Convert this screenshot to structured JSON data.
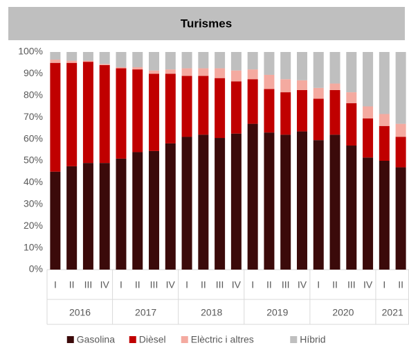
{
  "chart_data": {
    "type": "stacked_bar",
    "title": "Turismes",
    "groups": [
      {
        "label": "2016",
        "categories": [
          "I",
          "II",
          "III",
          "IV"
        ]
      },
      {
        "label": "2017",
        "categories": [
          "I",
          "II",
          "III",
          "IV"
        ]
      },
      {
        "label": "2018",
        "categories": [
          "I",
          "II",
          "III",
          "IV"
        ]
      },
      {
        "label": "2019",
        "categories": [
          "I",
          "II",
          "III",
          "IV"
        ]
      },
      {
        "label": "2020",
        "categories": [
          "I",
          "II",
          "III",
          "IV"
        ]
      },
      {
        "label": "2021",
        "categories": [
          "I",
          "II"
        ]
      }
    ],
    "series": [
      {
        "name": "Gasolina",
        "color": "#3b0a0a",
        "values": [
          45,
          47.5,
          49,
          49,
          51,
          54,
          54.5,
          58,
          61,
          62,
          60.5,
          62.5,
          67,
          63,
          62,
          63.5,
          59.5,
          62,
          57,
          51.5,
          50,
          47
        ]
      },
      {
        "name": "Dièsel",
        "color": "#c00000",
        "values": [
          50,
          47.5,
          46.5,
          45,
          41.5,
          38,
          35.5,
          32,
          28,
          27,
          27.5,
          24,
          20.5,
          20,
          19.5,
          19,
          19,
          20.5,
          19.5,
          18,
          16,
          14
        ]
      },
      {
        "name": "Elèctric i altres",
        "color": "#f4aaa0",
        "values": [
          1.5,
          1,
          0.5,
          0.5,
          0.5,
          1,
          1.5,
          2,
          3.5,
          3.5,
          4.5,
          5,
          4.5,
          6.5,
          6,
          4.5,
          5,
          3,
          5,
          5.5,
          5.5,
          6
        ]
      },
      {
        "name": "Híbrid",
        "color": "#bfbfbf",
        "values": [
          3.5,
          4,
          4,
          5.5,
          7,
          7,
          8.5,
          8,
          7.5,
          7.5,
          7.5,
          8.5,
          8,
          10.5,
          12.5,
          13,
          16.5,
          14.5,
          18.5,
          25,
          28.5,
          33
        ]
      }
    ],
    "ylim": [
      0,
      100
    ],
    "yticks": [
      {
        "value": 0,
        "label": "0%"
      },
      {
        "value": 10,
        "label": "10%"
      },
      {
        "value": 20,
        "label": "20%"
      },
      {
        "value": 30,
        "label": "30%"
      },
      {
        "value": 40,
        "label": "40%"
      },
      {
        "value": 50,
        "label": "50%"
      },
      {
        "value": 60,
        "label": "60%"
      },
      {
        "value": 70,
        "label": "70%"
      },
      {
        "value": 80,
        "label": "80%"
      },
      {
        "value": 90,
        "label": "90%"
      },
      {
        "value": 100,
        "label": "100%"
      }
    ],
    "grid": false,
    "legend": "bottom"
  }
}
